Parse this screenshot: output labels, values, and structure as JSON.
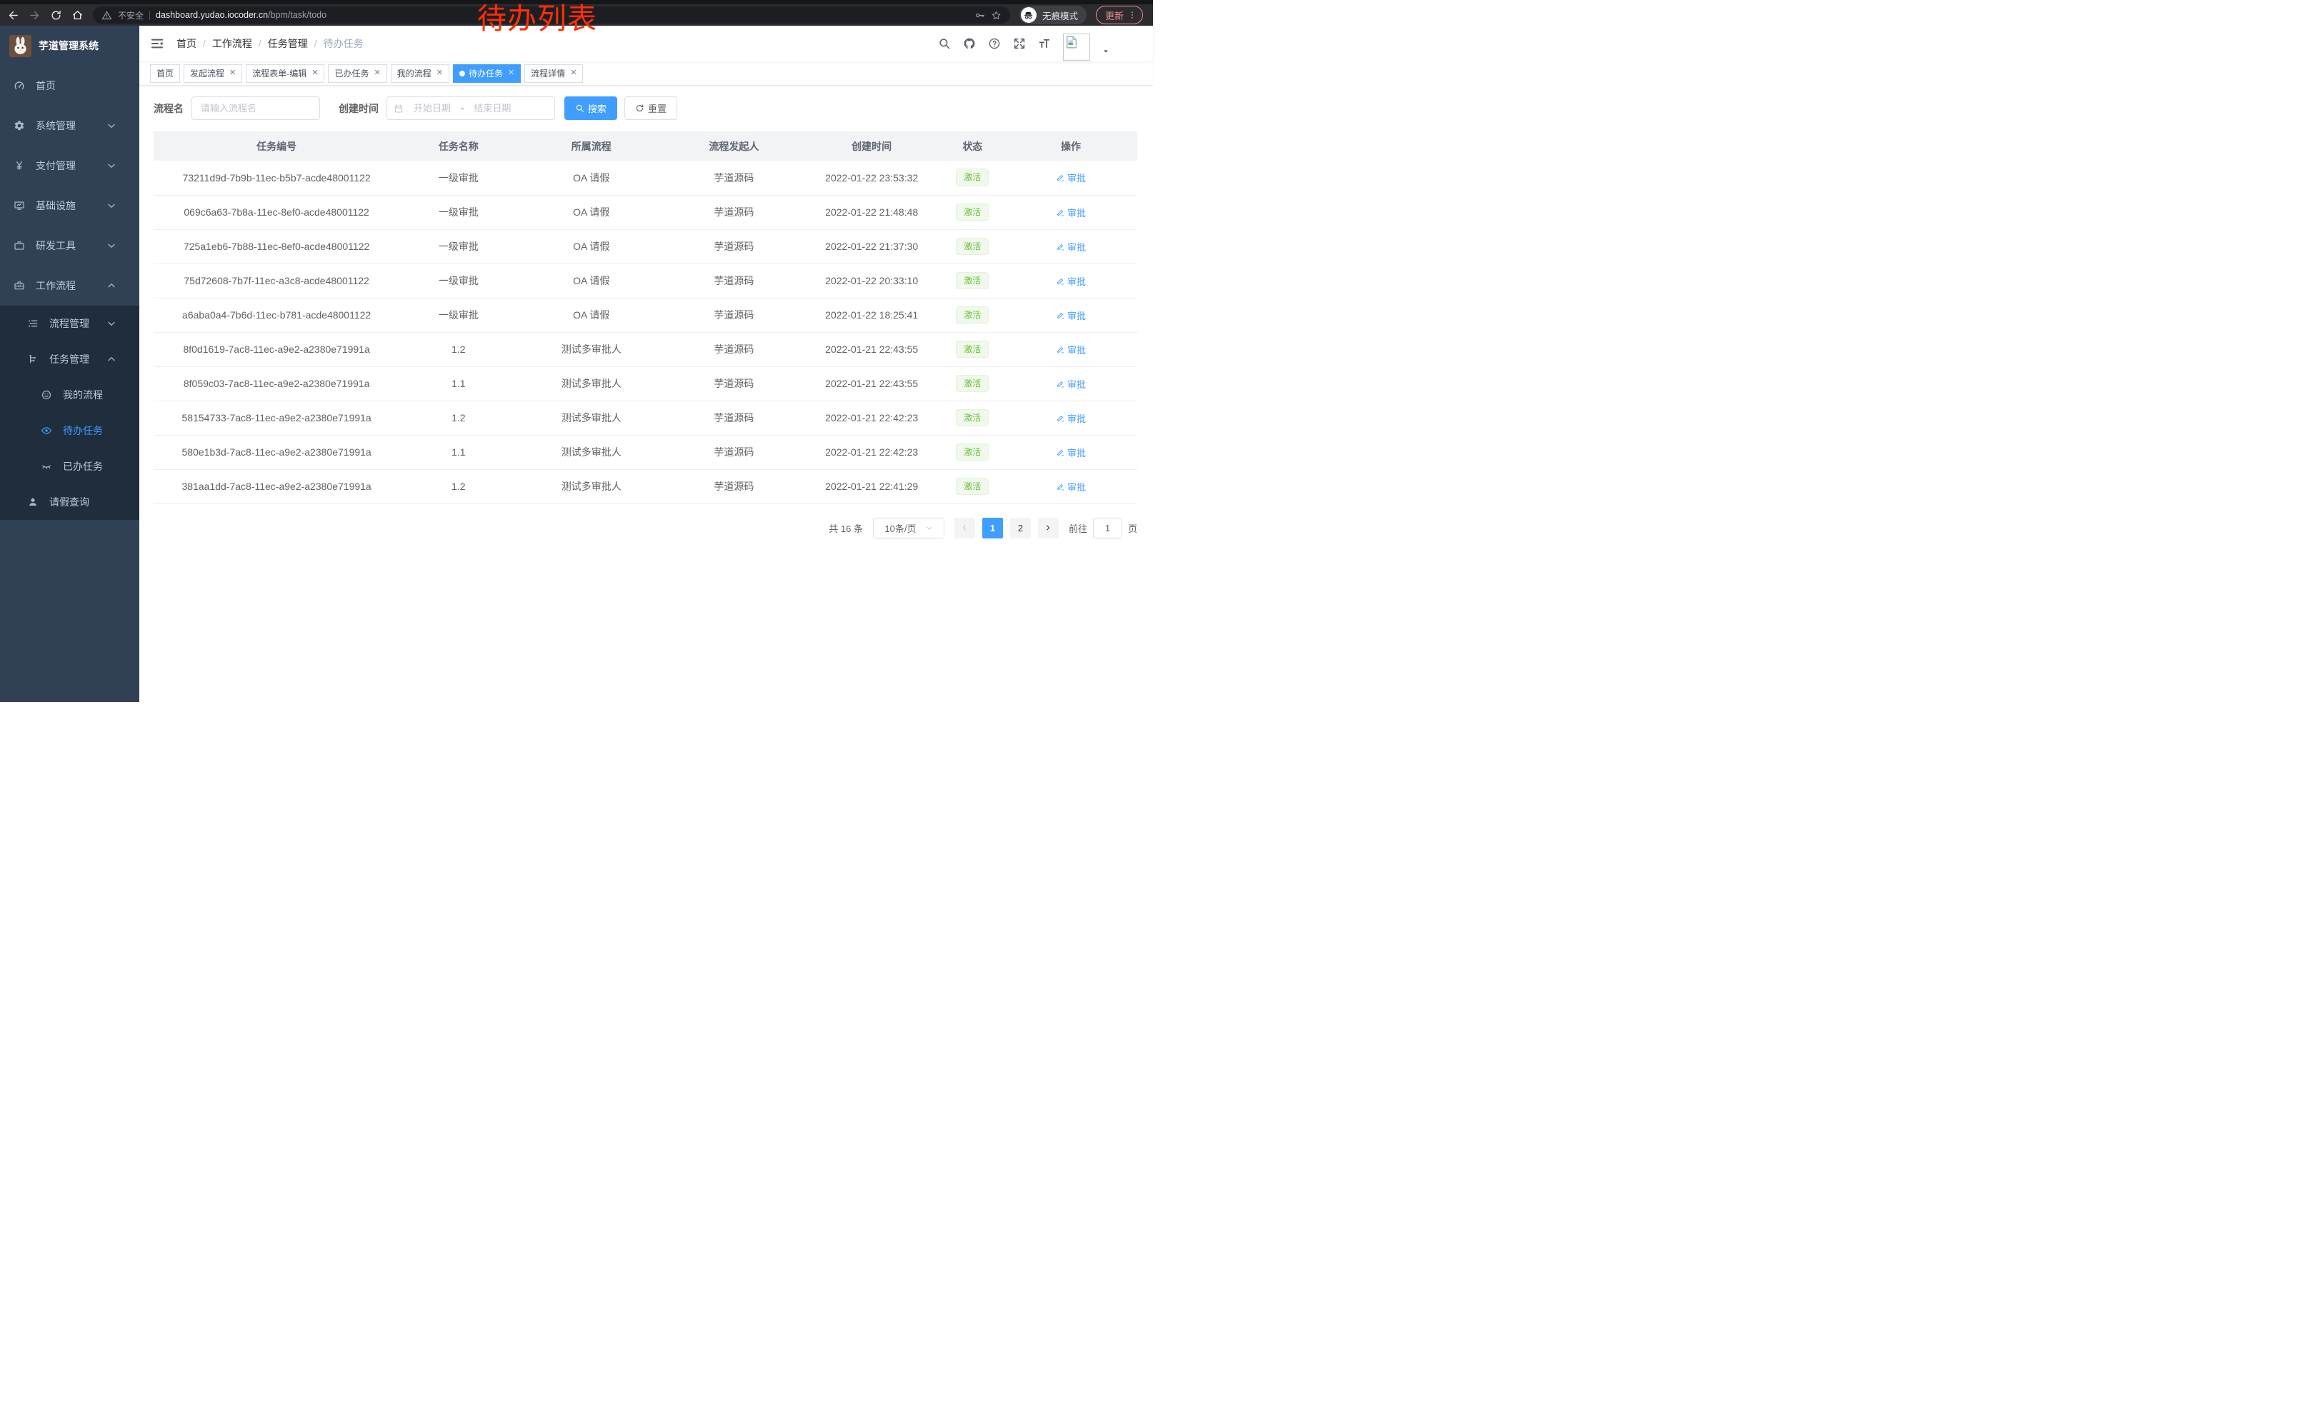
{
  "colors": {
    "accent": "#409eff",
    "sidebar_bg": "#304156",
    "submenu_bg": "#1f2d3d",
    "success_text": "#67c23a",
    "success_bg": "#f0f9eb",
    "success_border": "#e1f3d8",
    "annotation_red": "#ff2d08",
    "tag_border": "#d8dce5"
  },
  "browser": {
    "security_label": "不安全",
    "url_host": "dashboard.yudao.iocoder.cn",
    "url_path": "/bpm/task/todo",
    "incognito_label": "无痕模式",
    "update_label": "更新"
  },
  "annotation": {
    "text": "待办列表"
  },
  "sidebar": {
    "title": "芋道管理系统",
    "items": [
      {
        "key": "home",
        "icon": "gauge-icon",
        "label": "首页",
        "level": 1
      },
      {
        "key": "system",
        "icon": "gear-icon",
        "label": "系统管理",
        "level": 1,
        "chevron": "down"
      },
      {
        "key": "payment",
        "icon": "yen-icon",
        "label": "支付管理",
        "level": 1,
        "chevron": "down"
      },
      {
        "key": "infra",
        "icon": "monitor-icon",
        "label": "基础设施",
        "level": 1,
        "chevron": "down"
      },
      {
        "key": "devtools",
        "icon": "briefcase-icon",
        "label": "研发工具",
        "level": 1,
        "chevron": "down"
      },
      {
        "key": "workflow",
        "icon": "toolbox-icon",
        "label": "工作流程",
        "level": 1,
        "chevron": "up"
      },
      {
        "key": "process-mgmt",
        "icon": "list-tree-icon",
        "label": "流程管理",
        "level": 2,
        "sub": true,
        "chevron": "down"
      },
      {
        "key": "task-mgmt",
        "icon": "org-icon",
        "label": "任务管理",
        "level": 2,
        "sub": true,
        "chevron": "up"
      },
      {
        "key": "my-process",
        "icon": "face-icon",
        "label": "我的流程",
        "level": 3,
        "sub": true
      },
      {
        "key": "todo-task",
        "icon": "eye-icon",
        "label": "待办任务",
        "level": 3,
        "sub": true,
        "active": true
      },
      {
        "key": "done-task",
        "icon": "eye-closed-icon",
        "label": "已办任务",
        "level": 3,
        "sub": true
      },
      {
        "key": "leave-query",
        "icon": "user-icon",
        "label": "请假查询",
        "level": 2,
        "sub": true
      }
    ]
  },
  "navbar": {
    "breadcrumb": [
      "首页",
      "工作流程",
      "任务管理",
      "待办任务"
    ],
    "icons": [
      "search-icon",
      "github-icon",
      "question-icon",
      "fullscreen-icon",
      "font-size-icon"
    ]
  },
  "tabs": [
    {
      "label": "首页",
      "closable": false,
      "active": false
    },
    {
      "label": "发起流程",
      "closable": true,
      "active": false
    },
    {
      "label": "流程表单-编辑",
      "closable": true,
      "active": false
    },
    {
      "label": "已办任务",
      "closable": true,
      "active": false
    },
    {
      "label": "我的流程",
      "closable": true,
      "active": false
    },
    {
      "label": "待办任务",
      "closable": true,
      "active": true
    },
    {
      "label": "流程详情",
      "closable": true,
      "active": false
    }
  ],
  "filters": {
    "name_label": "流程名",
    "name_placeholder": "请输入流程名",
    "time_label": "创建时间",
    "start_placeholder": "开始日期",
    "separator": "-",
    "end_placeholder": "结束日期",
    "search_label": "搜索",
    "reset_label": "重置"
  },
  "table": {
    "headers": [
      "任务编号",
      "任务名称",
      "所属流程",
      "流程发起人",
      "创建时间",
      "状态",
      "操作"
    ],
    "status_label": "激活",
    "action_label": "审批",
    "rows": [
      {
        "id": "73211d9d-7b9b-11ec-b5b7-acde48001122",
        "name": "一级审批",
        "process": "OA 请假",
        "starter": "芋道源码",
        "time": "2022-01-22 23:53:32"
      },
      {
        "id": "069c6a63-7b8a-11ec-8ef0-acde48001122",
        "name": "一级审批",
        "process": "OA 请假",
        "starter": "芋道源码",
        "time": "2022-01-22 21:48:48"
      },
      {
        "id": "725a1eb6-7b88-11ec-8ef0-acde48001122",
        "name": "一级审批",
        "process": "OA 请假",
        "starter": "芋道源码",
        "time": "2022-01-22 21:37:30"
      },
      {
        "id": "75d72608-7b7f-11ec-a3c8-acde48001122",
        "name": "一级审批",
        "process": "OA 请假",
        "starter": "芋道源码",
        "time": "2022-01-22 20:33:10"
      },
      {
        "id": "a6aba0a4-7b6d-11ec-b781-acde48001122",
        "name": "一级审批",
        "process": "OA 请假",
        "starter": "芋道源码",
        "time": "2022-01-22 18:25:41"
      },
      {
        "id": "8f0d1619-7ac8-11ec-a9e2-a2380e71991a",
        "name": "1.2",
        "process": "测试多审批人",
        "starter": "芋道源码",
        "time": "2022-01-21 22:43:55"
      },
      {
        "id": "8f059c03-7ac8-11ec-a9e2-a2380e71991a",
        "name": "1.1",
        "process": "测试多审批人",
        "starter": "芋道源码",
        "time": "2022-01-21 22:43:55"
      },
      {
        "id": "58154733-7ac8-11ec-a9e2-a2380e71991a",
        "name": "1.2",
        "process": "测试多审批人",
        "starter": "芋道源码",
        "time": "2022-01-21 22:42:23"
      },
      {
        "id": "580e1b3d-7ac8-11ec-a9e2-a2380e71991a",
        "name": "1.1",
        "process": "测试多审批人",
        "starter": "芋道源码",
        "time": "2022-01-21 22:42:23"
      },
      {
        "id": "381aa1dd-7ac8-11ec-a9e2-a2380e71991a",
        "name": "1.2",
        "process": "测试多审批人",
        "starter": "芋道源码",
        "time": "2022-01-21 22:41:29"
      }
    ]
  },
  "pagination": {
    "total_label": "共 16 条",
    "page_size_label": "10条/页",
    "pages": [
      "1",
      "2"
    ],
    "active_page": "1",
    "goto_label": "前往",
    "goto_value": "1",
    "goto_suffix": "页"
  }
}
